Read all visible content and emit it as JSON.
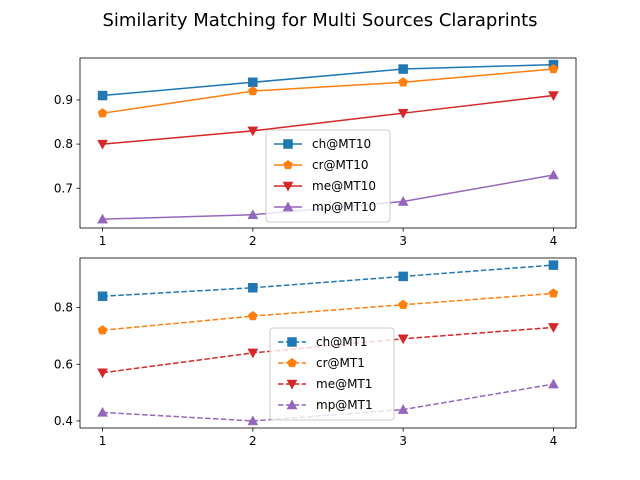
{
  "title": "Similarity Matching for Multi Sources Claraprints",
  "chart_data": [
    {
      "type": "line",
      "x": [
        1,
        2,
        3,
        4
      ],
      "xticks": [
        "1",
        "2",
        "3",
        "4"
      ],
      "ylim": [
        0.61,
        0.995
      ],
      "yticks": [
        0.7,
        0.8,
        0.9
      ],
      "ytick_labels": [
        "0.7",
        "0.8",
        "0.9"
      ],
      "legend_position": "lower-center",
      "line_style": "solid",
      "series": [
        {
          "name": "ch@MT10",
          "values": [
            0.91,
            0.94,
            0.97,
            0.98
          ],
          "color": "#1f77b4",
          "marker": "square"
        },
        {
          "name": "cr@MT10",
          "values": [
            0.87,
            0.92,
            0.94,
            0.97
          ],
          "color": "#ff7f0e",
          "marker": "pentagon"
        },
        {
          "name": "me@MT10",
          "values": [
            0.8,
            0.83,
            0.87,
            0.91
          ],
          "color": "#d62728",
          "marker": "triangle-down"
        },
        {
          "name": "mp@MT10",
          "values": [
            0.63,
            0.64,
            0.67,
            0.73
          ],
          "color": "#9467bd",
          "marker": "triangle-up"
        }
      ]
    },
    {
      "type": "line",
      "x": [
        1,
        2,
        3,
        4
      ],
      "xticks": [
        "1",
        "2",
        "3",
        "4"
      ],
      "ylim": [
        0.375,
        0.975
      ],
      "yticks": [
        0.4,
        0.6,
        0.8
      ],
      "ytick_labels": [
        "0.4",
        "0.6",
        "0.8"
      ],
      "legend_position": "lower-center",
      "line_style": "dashed",
      "series": [
        {
          "name": "ch@MT1",
          "values": [
            0.84,
            0.87,
            0.91,
            0.95
          ],
          "color": "#1f77b4",
          "marker": "square"
        },
        {
          "name": "cr@MT1",
          "values": [
            0.72,
            0.77,
            0.81,
            0.85
          ],
          "color": "#ff7f0e",
          "marker": "pentagon"
        },
        {
          "name": "me@MT1",
          "values": [
            0.57,
            0.64,
            0.69,
            0.73
          ],
          "color": "#d62728",
          "marker": "triangle-down"
        },
        {
          "name": "mp@MT1",
          "values": [
            0.43,
            0.4,
            0.44,
            0.53
          ],
          "color": "#9467bd",
          "marker": "triangle-up"
        }
      ]
    }
  ]
}
